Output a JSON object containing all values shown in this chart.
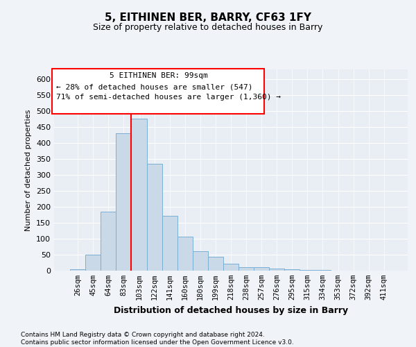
{
  "title": "5, EITHINEN BER, BARRY, CF63 1FY",
  "subtitle": "Size of property relative to detached houses in Barry",
  "xlabel": "Distribution of detached houses by size in Barry",
  "ylabel": "Number of detached properties",
  "categories": [
    "26sqm",
    "45sqm",
    "64sqm",
    "83sqm",
    "103sqm",
    "122sqm",
    "141sqm",
    "160sqm",
    "180sqm",
    "199sqm",
    "218sqm",
    "238sqm",
    "257sqm",
    "276sqm",
    "295sqm",
    "315sqm",
    "334sqm",
    "353sqm",
    "372sqm",
    "392sqm",
    "411sqm"
  ],
  "values": [
    5,
    50,
    185,
    430,
    475,
    335,
    172,
    107,
    60,
    43,
    22,
    10,
    10,
    7,
    5,
    3,
    2,
    1,
    1,
    1,
    1
  ],
  "bar_color": "#c9d9e8",
  "bar_edge_color": "#7bafd4",
  "ylim": [
    0,
    630
  ],
  "yticks": [
    0,
    50,
    100,
    150,
    200,
    250,
    300,
    350,
    400,
    450,
    500,
    550,
    600
  ],
  "red_line_index": 3.5,
  "annotation_text_line1": "5 EITHINEN BER: 99sqm",
  "annotation_text_line2": "← 28% of detached houses are smaller (547)",
  "annotation_text_line3": "71% of semi-detached houses are larger (1,360) →",
  "footnote_line1": "Contains HM Land Registry data © Crown copyright and database right 2024.",
  "footnote_line2": "Contains public sector information licensed under the Open Government Licence v3.0.",
  "bg_color": "#f0f4f8",
  "plot_bg_color": "#e8eef4"
}
